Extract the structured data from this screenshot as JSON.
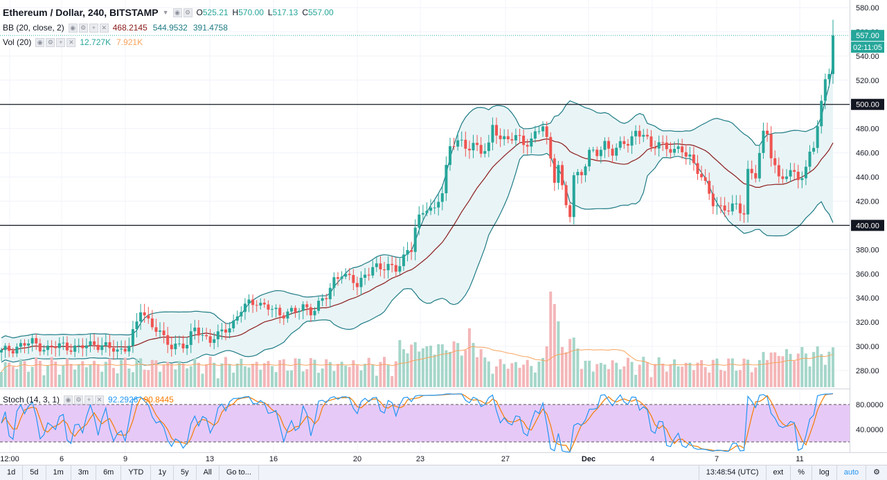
{
  "header": {
    "symbol_title": "Ethereum / Dollar, 240, BITSTAMP",
    "ohlc": [
      {
        "label": "O",
        "value": "525.21"
      },
      {
        "label": "H",
        "value": "570.00"
      },
      {
        "label": "L",
        "value": "517.13"
      },
      {
        "label": "C",
        "value": "557.00"
      }
    ]
  },
  "indicators": {
    "bb": {
      "title": "BB (20, close, 2)",
      "values": [
        "468.2145",
        "544.9532",
        "391.4758"
      ],
      "colors": [
        "#8b1a1a",
        "#1e7b85",
        "#1e7b85"
      ]
    },
    "vol": {
      "title": "Vol (20)",
      "values": [
        "12.727K",
        "7.921K"
      ],
      "colors": [
        "#26a69a",
        "#f7a35c"
      ]
    },
    "stoch": {
      "title": "Stoch (14, 3, 1)",
      "values": [
        "92.2926",
        "90.8445"
      ],
      "colors": [
        "#2196f3",
        "#f57c00"
      ]
    }
  },
  "price_axis": {
    "ticks": [
      "580.00",
      "560.00",
      "540.00",
      "520.00",
      "500.00",
      "480.00",
      "460.00",
      "440.00",
      "420.00",
      "400.00",
      "380.00",
      "360.00",
      "340.00",
      "320.00",
      "300.00",
      "280.00"
    ],
    "last_price_tag": "557.00",
    "countdown_tag": "02:11:05",
    "level_tags": [
      "500.00",
      "400.00"
    ]
  },
  "stoch_axis": {
    "ticks": [
      "80.0000",
      "40.0000"
    ]
  },
  "time_axis": {
    "labels": [
      "12:00",
      "6",
      "9",
      "13",
      "16",
      "20",
      "23",
      "27",
      "Dec",
      "4",
      "7",
      "11"
    ]
  },
  "bottom_bar": {
    "timeframes": [
      "1d",
      "5d",
      "1m",
      "3m",
      "6m",
      "YTD",
      "1y",
      "5y",
      "All",
      "Go to..."
    ],
    "clock": "13:48:54 (UTC)",
    "options": [
      "ext",
      "%",
      "log",
      "auto"
    ],
    "gear_icon": "gear-icon"
  },
  "colors": {
    "up": "#26a69a",
    "down": "#ef5350",
    "up_vol": "#a5d6c9",
    "down_vol": "#f4b6b8",
    "bb_fill": "#e9f4f6",
    "stoch_fill": "#e7c9f7"
  },
  "chart_data": {
    "type": "candlestick",
    "title": "Ethereum / Dollar, 240, BITSTAMP",
    "y_axis_range": [
      270,
      585
    ],
    "horizontal_lines": [
      500,
      400
    ],
    "close_path": [
      [
        0,
        295
      ],
      [
        4,
        300
      ],
      [
        8,
        303
      ],
      [
        12,
        298
      ],
      [
        16,
        301
      ],
      [
        20,
        298
      ],
      [
        24,
        303
      ],
      [
        28,
        298
      ],
      [
        30,
        296
      ],
      [
        33,
        302
      ],
      [
        35,
        318
      ],
      [
        36,
        330
      ],
      [
        38,
        322
      ],
      [
        40,
        315
      ],
      [
        42,
        305
      ],
      [
        44,
        300
      ],
      [
        46,
        303
      ],
      [
        48,
        300
      ],
      [
        50,
        315
      ],
      [
        52,
        310
      ],
      [
        54,
        305
      ],
      [
        56,
        308
      ],
      [
        58,
        315
      ],
      [
        60,
        320
      ],
      [
        62,
        330
      ],
      [
        64,
        335
      ],
      [
        66,
        338
      ],
      [
        68,
        333
      ],
      [
        70,
        330
      ],
      [
        72,
        326
      ],
      [
        74,
        330
      ],
      [
        76,
        328
      ],
      [
        78,
        332
      ],
      [
        80,
        330
      ],
      [
        82,
        335
      ],
      [
        84,
        340
      ],
      [
        86,
        355
      ],
      [
        88,
        362
      ],
      [
        90,
        355
      ],
      [
        92,
        350
      ],
      [
        94,
        360
      ],
      [
        96,
        366
      ],
      [
        98,
        362
      ],
      [
        100,
        368
      ],
      [
        102,
        365
      ],
      [
        104,
        372
      ],
      [
        106,
        380
      ],
      [
        107,
        400
      ],
      [
        108,
        408
      ],
      [
        110,
        415
      ],
      [
        112,
        410
      ],
      [
        114,
        430
      ],
      [
        115,
        450
      ],
      [
        116,
        465
      ],
      [
        118,
        470
      ],
      [
        120,
        462
      ],
      [
        122,
        470
      ],
      [
        124,
        460
      ],
      [
        126,
        465
      ],
      [
        127,
        480
      ],
      [
        129,
        475
      ],
      [
        131,
        470
      ],
      [
        133,
        473
      ],
      [
        135,
        468
      ],
      [
        137,
        472
      ],
      [
        139,
        478
      ],
      [
        140,
        482
      ],
      [
        141,
        470
      ],
      [
        142,
        455
      ],
      [
        143,
        440
      ],
      [
        144,
        452
      ],
      [
        145,
        430
      ],
      [
        146,
        415
      ],
      [
        147,
        408
      ],
      [
        148,
        440
      ],
      [
        150,
        445
      ],
      [
        152,
        460
      ],
      [
        154,
        458
      ],
      [
        156,
        468
      ],
      [
        158,
        462
      ],
      [
        160,
        465
      ],
      [
        162,
        468
      ],
      [
        164,
        478
      ],
      [
        166,
        476
      ],
      [
        168,
        462
      ],
      [
        170,
        470
      ],
      [
        172,
        465
      ],
      [
        174,
        460
      ],
      [
        176,
        462
      ],
      [
        178,
        458
      ],
      [
        180,
        445
      ],
      [
        182,
        432
      ],
      [
        184,
        420
      ],
      [
        186,
        415
      ],
      [
        188,
        412
      ],
      [
        190,
        416
      ],
      [
        192,
        412
      ],
      [
        193,
        445
      ],
      [
        195,
        440
      ],
      [
        197,
        475
      ],
      [
        198,
        478
      ],
      [
        199,
        460
      ],
      [
        201,
        438
      ],
      [
        203,
        440
      ],
      [
        205,
        445
      ],
      [
        207,
        440
      ],
      [
        208,
        445
      ],
      [
        209,
        460
      ],
      [
        210,
        465
      ],
      [
        211,
        480
      ],
      [
        212,
        502
      ],
      [
        213,
        525
      ],
      [
        214,
        528
      ],
      [
        215,
        557
      ]
    ]
  }
}
